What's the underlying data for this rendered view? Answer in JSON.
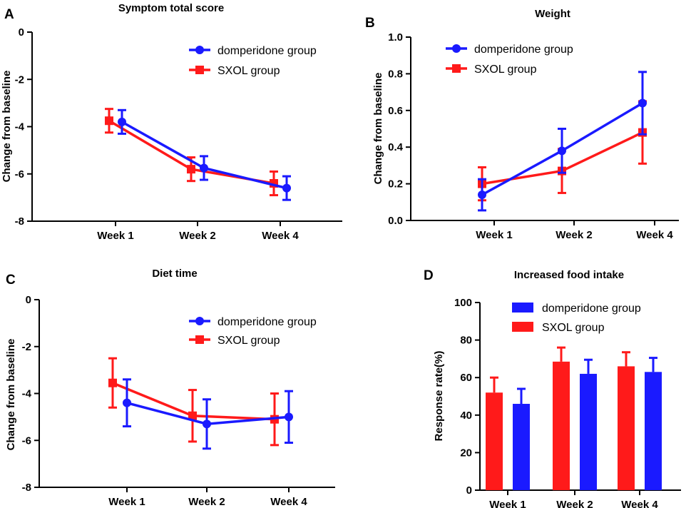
{
  "chart_data": [
    {
      "panel_label": "A",
      "type": "line",
      "title": "Symptom total score",
      "ylabel": "Change from baseline",
      "xlabel": "",
      "categories": [
        "Week 1",
        "Week 2",
        "Week 4"
      ],
      "ylim": [
        -8,
        0
      ],
      "yticks": [
        0,
        -2,
        -4,
        -6,
        -8
      ],
      "ytick_labels": [
        "0",
        "-2",
        "-4",
        "-6",
        "-8"
      ],
      "legend_position": "top-right",
      "series": [
        {
          "name": "domperidone group",
          "color": "#1a1aff",
          "marker": "circle",
          "values": [
            -3.8,
            -5.75,
            -6.6
          ],
          "err": [
            0.5,
            0.5,
            0.5
          ]
        },
        {
          "name": "SXOL group",
          "color": "#ff1a1a",
          "marker": "square",
          "values": [
            -3.75,
            -5.8,
            -6.4
          ],
          "err": [
            0.5,
            0.5,
            0.5
          ]
        }
      ]
    },
    {
      "panel_label": "B",
      "type": "line",
      "title": "Weight",
      "ylabel": "Change from baseline",
      "xlabel": "",
      "categories": [
        "Week 1",
        "Week 2",
        "Week 4"
      ],
      "ylim": [
        0,
        1.0
      ],
      "yticks": [
        0,
        0.2,
        0.4,
        0.6,
        0.8,
        1.0
      ],
      "ytick_labels": [
        "0.0",
        "0.2",
        "0.4",
        "0.6",
        "0.8",
        "1.0"
      ],
      "legend_position": "top-left",
      "series": [
        {
          "name": "domperidone group",
          "color": "#1a1aff",
          "marker": "circle",
          "values": [
            0.14,
            0.38,
            0.64
          ],
          "err": [
            0.085,
            0.12,
            0.17
          ]
        },
        {
          "name": "SXOL group",
          "color": "#ff1a1a",
          "marker": "square",
          "values": [
            0.2,
            0.27,
            0.48
          ],
          "err": [
            0.09,
            0.12,
            0.17
          ]
        }
      ]
    },
    {
      "panel_label": "C",
      "type": "line",
      "title": "Diet time",
      "ylabel": "Change from baseline",
      "xlabel": "",
      "categories": [
        "Week 1",
        "Week 2",
        "Week 4"
      ],
      "ylim": [
        -8,
        0
      ],
      "yticks": [
        0,
        -2,
        -4,
        -6,
        -8
      ],
      "ytick_labels": [
        "0",
        "-2",
        "-4",
        "-6",
        "-8"
      ],
      "legend_position": "top-right",
      "series": [
        {
          "name": "domperidone group",
          "color": "#1a1aff",
          "marker": "circle",
          "values": [
            -4.4,
            -5.3,
            -5.0
          ],
          "err": [
            1.0,
            1.05,
            1.1
          ]
        },
        {
          "name": "SXOL group",
          "color": "#ff1a1a",
          "marker": "square",
          "values": [
            -3.55,
            -4.95,
            -5.1
          ],
          "err": [
            1.05,
            1.1,
            1.1
          ]
        }
      ]
    },
    {
      "panel_label": "D",
      "type": "bar",
      "title": "Increased food intake",
      "ylabel": "Response rate(%)",
      "xlabel": "",
      "categories": [
        "Week 1",
        "Week 2",
        "Week 4"
      ],
      "ylim": [
        0,
        100
      ],
      "yticks": [
        0,
        20,
        40,
        60,
        80,
        100
      ],
      "ytick_labels": [
        "0",
        "20",
        "40",
        "60",
        "80",
        "100"
      ],
      "legend_position": "top-right",
      "series": [
        {
          "name": "SXOL group",
          "color": "#ff1a1a",
          "values": [
            52,
            68.5,
            66
          ],
          "err": [
            8,
            7.5,
            7.5
          ]
        },
        {
          "name": "domperidone group",
          "color": "#1a1aff",
          "values": [
            46,
            62,
            63
          ],
          "err": [
            8,
            7.5,
            7.5
          ]
        }
      ],
      "legend_order": [
        "domperidone group",
        "SXOL group"
      ]
    }
  ]
}
